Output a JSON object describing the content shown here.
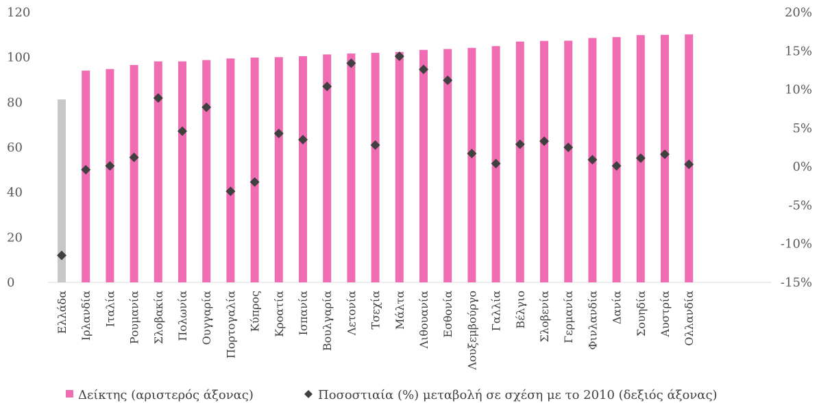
{
  "chart_data": {
    "type": "bar",
    "categories": [
      "Ελλάδα",
      "Ιρλανδία",
      "Ιταλία",
      "Ρουμανία",
      "Σλοβακία",
      "Πολωνία",
      "Ουγγαρία",
      "Πορτογαλία",
      "Κύπρος",
      "Κροατία",
      "Ισπανία",
      "Βουλγαρία",
      "Λετονία",
      "Τσεχία",
      "Μάλτα",
      "Λιθουανία",
      "Εσθονία",
      "Λουξεμβούργο",
      "Γαλλία",
      "Βέλγιο",
      "Σλοβενία",
      "Γερμανία",
      "Φινλανδία",
      "Δανία",
      "Σουηδία",
      "Αυστρία",
      "Ολλανδία"
    ],
    "series": [
      {
        "name": "Δείκτης (αριστερός άξονας)",
        "axis": "left",
        "kind": "bar",
        "color": "#f06db4",
        "highlight_color": "#c8c8c8",
        "highlight_index": 0,
        "values": [
          81.3,
          94.1,
          94.8,
          96.6,
          98.2,
          98.2,
          98.8,
          99.5,
          99.9,
          100.1,
          100.5,
          101.3,
          101.7,
          102.0,
          102.4,
          103.3,
          103.7,
          104.2,
          105.0,
          107.0,
          107.3,
          107.4,
          108.6,
          109.0,
          109.9,
          110.0,
          110.2
        ]
      },
      {
        "name": "Ποσοστιαία (%) μεταβολή σε σχέση με το 2010 (δεξιός άξονας)",
        "axis": "right",
        "kind": "marker",
        "marker": "diamond",
        "color": "#404040",
        "values": [
          -11.5,
          -0.4,
          0.1,
          1.2,
          8.9,
          4.6,
          7.7,
          -3.2,
          -2.0,
          4.3,
          3.5,
          10.4,
          13.4,
          2.8,
          14.3,
          12.6,
          11.2,
          1.7,
          0.4,
          2.9,
          3.3,
          2.5,
          0.9,
          0.1,
          1.1,
          1.6,
          0.3
        ]
      }
    ],
    "ylim_left": [
      0,
      120
    ],
    "yticks_left": [
      0,
      20,
      40,
      60,
      80,
      100,
      120
    ],
    "ylim_right": [
      -15,
      20
    ],
    "yticks_right": [
      -15,
      -10,
      -5,
      0,
      5,
      10,
      15,
      20
    ],
    "yticklabels_right": [
      "-15%",
      "-10%",
      "-5%",
      "0%",
      "5%",
      "10%",
      "15%",
      "20%"
    ],
    "grid": false,
    "legend": "bottom"
  }
}
